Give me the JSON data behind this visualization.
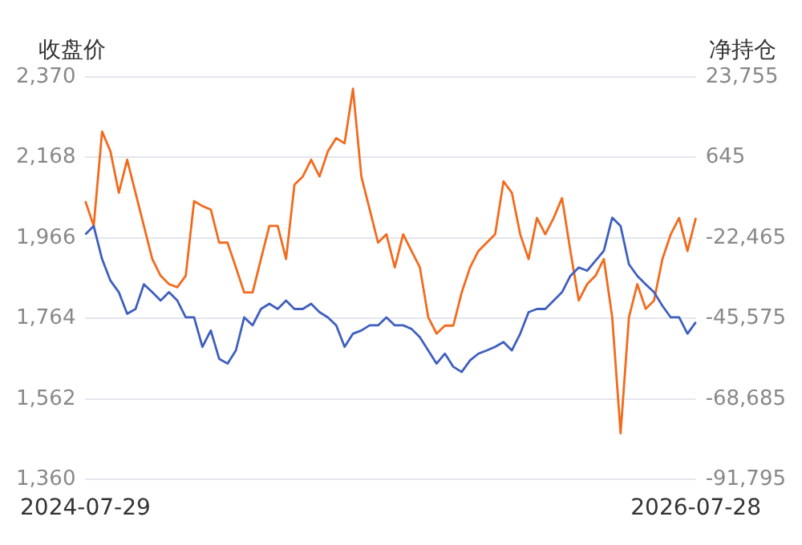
{
  "chart_data": {
    "type": "line",
    "ylabel": "收盘价",
    "y2label": "净持仓",
    "categories": [
      "2024-07-29",
      null,
      null,
      null,
      null,
      null,
      null,
      null,
      null,
      null,
      null,
      null,
      null,
      null,
      null,
      null,
      null,
      null,
      null,
      null,
      null,
      null,
      null,
      null,
      null,
      null,
      null,
      null,
      null,
      null,
      null,
      null,
      null,
      null,
      null,
      null,
      null,
      null,
      null,
      null,
      null,
      null,
      null,
      null,
      null,
      null,
      null,
      null,
      null,
      null,
      null,
      null,
      null,
      null,
      null,
      null,
      null,
      null,
      null,
      null,
      null,
      null,
      null,
      null,
      null,
      null,
      null,
      null,
      null,
      null,
      null,
      null,
      null,
      "2026-07-28"
    ],
    "series": [
      {
        "color": "#3f5fbf",
        "values": [
          1975,
          1996,
          1913,
          1859,
          1830,
          1776,
          1788,
          1850,
          1830,
          1809,
          1830,
          1809,
          1767,
          1767,
          1693,
          1734,
          1663,
          1651,
          1684,
          1767,
          1747,
          1788,
          1801,
          1788,
          1809,
          1788,
          1788,
          1801,
          1780,
          1767,
          1747,
          1693,
          1726,
          1734,
          1747,
          1747,
          1767,
          1747,
          1747,
          1738,
          1717,
          1684,
          1651,
          1676,
          1643,
          1630,
          1659,
          1676,
          1684,
          1693,
          1705,
          1684,
          1726,
          1780,
          1788,
          1788,
          1809,
          1830,
          1871,
          1892,
          1884,
          1909,
          1934,
          2017,
          1996,
          1900,
          1871,
          1850,
          1830,
          1796,
          1767,
          1767,
          1726,
          1755
        ]
      },
      {
        "color": "#f26b1d",
        "axis": "y2",
        "values": [
          -11900,
          -19000,
          8100,
          2400,
          -9500,
          0,
          -9500,
          -19000,
          -28500,
          -33300,
          -35700,
          -36600,
          -33300,
          -11900,
          -13300,
          -14300,
          -23800,
          -23800,
          -30900,
          -38100,
          -38100,
          -28500,
          -19000,
          -19000,
          -28500,
          -7200,
          -4800,
          0,
          -4800,
          2400,
          6200,
          4700,
          20400,
          -4800,
          -14300,
          -23800,
          -21400,
          -30900,
          -21400,
          -26200,
          -30900,
          -45200,
          -49900,
          -47600,
          -47600,
          -38100,
          -30900,
          -26200,
          -23800,
          -21400,
          -6200,
          -9500,
          -21400,
          -28500,
          -16700,
          -21400,
          -16700,
          -11000,
          -26200,
          -40400,
          -35700,
          -33300,
          -28500,
          -45200,
          -78500,
          -45200,
          -35700,
          -42800,
          -40400,
          -28500,
          -21400,
          -16700,
          -26200,
          -16700
        ]
      }
    ],
    "ylim": [
      1360,
      2370
    ],
    "yticks": [
      {
        "value": 1360,
        "label": "1,360"
      },
      {
        "value": 1562,
        "label": "1,562"
      },
      {
        "value": 1764,
        "label": "1,764"
      },
      {
        "value": 1966,
        "label": "1,966"
      },
      {
        "value": 2168,
        "label": "2,168"
      },
      {
        "value": 2370,
        "label": "2,370"
      }
    ],
    "y2lim": [
      -91795,
      23755
    ],
    "y2ticks": [
      {
        "value": -91795,
        "label": "-91,795"
      },
      {
        "value": -68685,
        "label": "-68,685"
      },
      {
        "value": -45575,
        "label": "-45,575"
      },
      {
        "value": -22465,
        "label": "-22,465"
      },
      645,
      {
        "value": 23755,
        "label": "23,755"
      }
    ],
    "grid": "y",
    "marker": "none",
    "line_style": "solid"
  }
}
